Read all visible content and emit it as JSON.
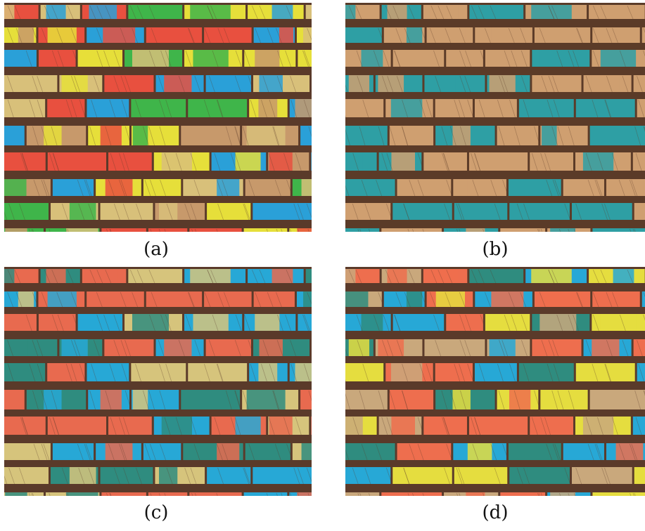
{
  "panels": [
    {
      "id": "a",
      "caption": "(a)",
      "palette": [
        "#e8503f",
        "#2aa0d8",
        "#e6df3a",
        "#3fb54a",
        "#c7996b",
        "#d8c07a"
      ]
    },
    {
      "id": "b",
      "caption": "(b)",
      "palette": [
        "#cf9f70",
        "#2e9fa4"
      ]
    },
    {
      "id": "c",
      "caption": "(c)",
      "palette": [
        "#e86a4f",
        "#27a8d6",
        "#d6c47c",
        "#2f8c7f"
      ]
    },
    {
      "id": "d",
      "caption": "(d)",
      "palette": [
        "#ee6e4e",
        "#27a8d6",
        "#e5dd3f",
        "#2f8c7f",
        "#c9a87c"
      ]
    }
  ],
  "colors": {
    "background": "#ffffff",
    "gap": "#5a3a2a",
    "gap_b": "#5b3b28"
  }
}
